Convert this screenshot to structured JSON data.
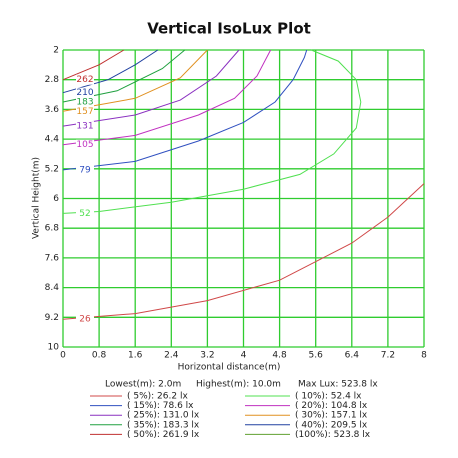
{
  "chart_data": {
    "type": "contour",
    "title": "Vertical IsoLux Plot",
    "x_label": "Horizontal distance(m)",
    "y_label": "Vertical Height(m)",
    "xlim": [
      0,
      8
    ],
    "ylim": [
      2,
      10
    ],
    "y_inverted": true,
    "xticks": [
      0,
      0.8,
      1.6,
      2.4,
      3.2,
      4,
      4.8,
      5.6,
      6.4,
      7.2,
      8
    ],
    "yticks": [
      2,
      2.8,
      3.6,
      4.4,
      5.2,
      6,
      6.8,
      7.6,
      8.4,
      9.2,
      10
    ],
    "grid": true,
    "grid_color": "#2fcc2f",
    "lowest": "Lowest(m): 2.0m",
    "highest": "Highest(m): 10.0m",
    "max_lux": "Max Lux: 523.8 lx",
    "series": [
      {
        "name": "( 5%): 26.2 lx",
        "label": "26",
        "color": "#d04848",
        "x": [
          0,
          1.6,
          3.2,
          4.8,
          6.4,
          7.2,
          8
        ],
        "y": [
          9.25,
          9.1,
          8.75,
          8.2,
          7.2,
          6.5,
          5.6
        ]
      },
      {
        "name": "( 10%): 52.4 lx",
        "label": "52",
        "color": "#50e050",
        "x": [
          0,
          0.8,
          2.4,
          4,
          5.25,
          6,
          6.5,
          6.6,
          6.5,
          6.1,
          5.5
        ],
        "y": [
          6.4,
          6.35,
          6.1,
          5.75,
          5.35,
          4.8,
          4.1,
          3.4,
          2.8,
          2.3,
          2
        ]
      },
      {
        "name": "( 15%): 78.6 lx",
        "label": "79",
        "color": "#3050c0",
        "x": [
          0,
          1.6,
          3,
          4,
          4.7,
          5.1,
          5.35,
          5.4
        ],
        "y": [
          5.23,
          5,
          4.45,
          3.95,
          3.4,
          2.8,
          2.2,
          2
        ]
      },
      {
        "name": "( 20%): 104.8 lx",
        "label": "105",
        "color": "#c030c0",
        "x": [
          0,
          1.6,
          3,
          3.8,
          4.3,
          4.6
        ],
        "y": [
          4.55,
          4.3,
          3.75,
          3.3,
          2.7,
          2
        ]
      },
      {
        "name": "( 25%): 131.0 lx",
        "label": "131",
        "color": "#8a30c0",
        "x": [
          0,
          1.6,
          2.6,
          3.4,
          3.9
        ],
        "y": [
          4.05,
          3.75,
          3.35,
          2.7,
          2
        ]
      },
      {
        "name": "( 30%): 157.1 lx",
        "label": "157",
        "color": "#e09020",
        "x": [
          0,
          1.6,
          2.6,
          3.2
        ],
        "y": [
          3.65,
          3.3,
          2.75,
          2
        ]
      },
      {
        "name": "( 35%): 183.3 lx",
        "label": "183",
        "color": "#20a040",
        "x": [
          0,
          1.2,
          2.2,
          2.7
        ],
        "y": [
          3.4,
          3.1,
          2.5,
          2
        ]
      },
      {
        "name": "( 40%): 209.5 lx",
        "label": "210",
        "color": "#2040a0",
        "x": [
          0,
          1,
          1.6,
          2.1
        ],
        "y": [
          3.15,
          2.8,
          2.4,
          2
        ]
      },
      {
        "name": "( 50%): 261.9 lx",
        "label": "262",
        "color": "#c03030",
        "x": [
          0,
          0.8,
          1.35
        ],
        "y": [
          2.8,
          2.4,
          2
        ]
      },
      {
        "name": "(100%): 523.8 lx",
        "color": "#60a030"
      }
    ]
  }
}
